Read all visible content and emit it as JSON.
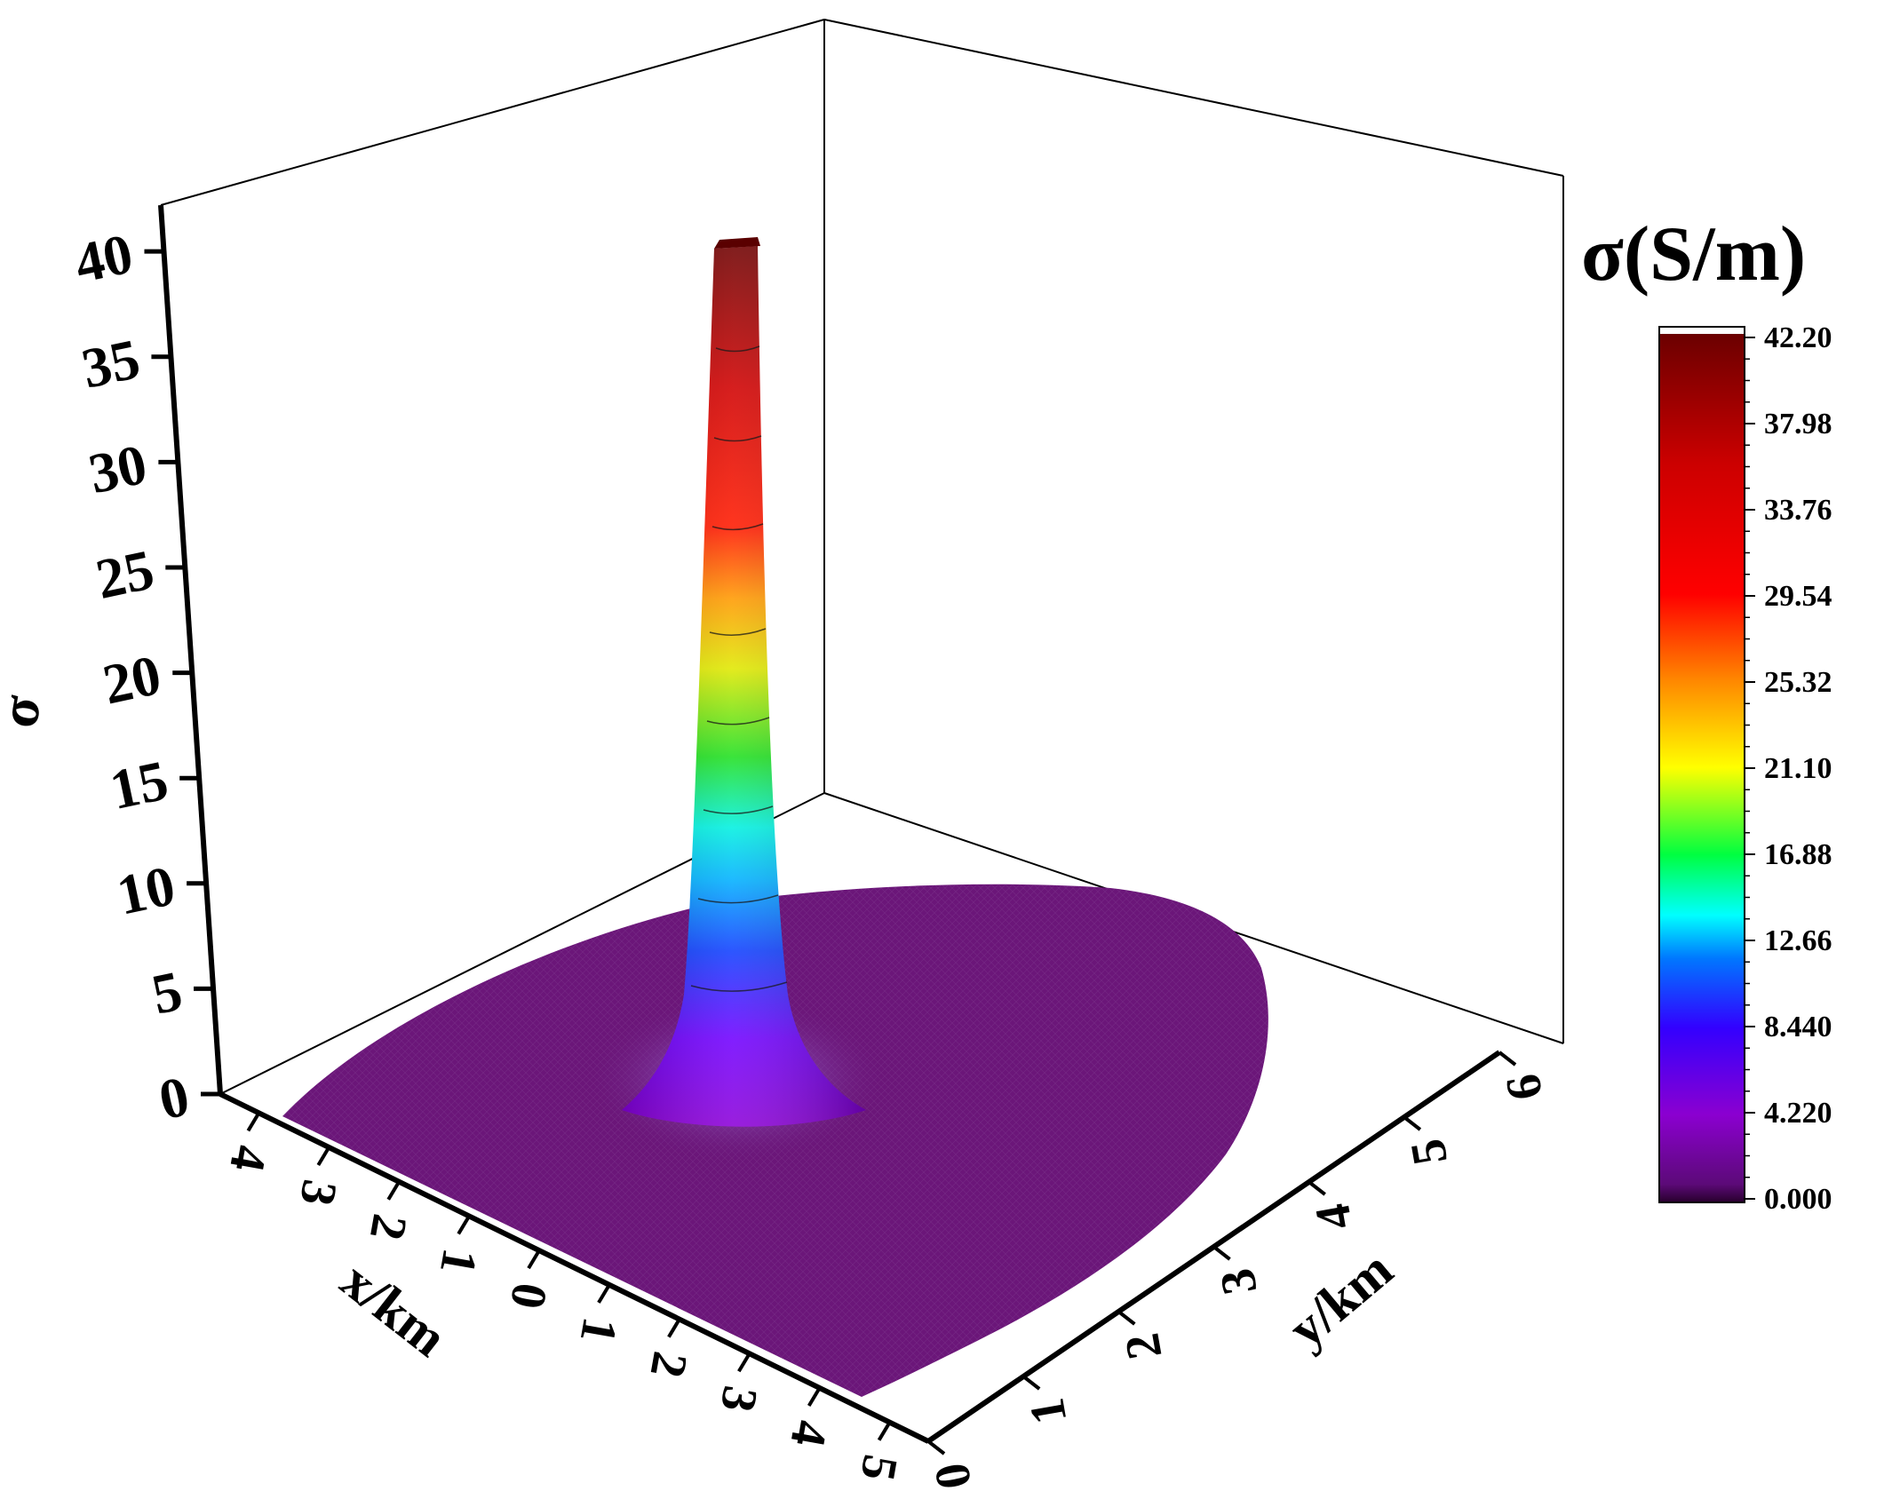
{
  "chart_data": {
    "type": "surface3d",
    "title": "",
    "colorbar": {
      "title": "σ(S/m)",
      "ticks": [
        "42.20",
        "37.98",
        "33.76",
        "29.54",
        "25.32",
        "21.10",
        "16.88",
        "12.66",
        "8.440",
        "4.220",
        "0.000"
      ],
      "min": 0,
      "max": 42.2,
      "colormap": [
        "#2a0030",
        "#8b00b8",
        "#3300ff",
        "#00aaff",
        "#00ffff",
        "#00ff33",
        "#ffff00",
        "#ff8800",
        "#ff0000",
        "#cc0000",
        "#6b0000"
      ]
    },
    "axes": {
      "x": {
        "label": "x/km",
        "ticks": [
          "4",
          "3",
          "2",
          "1",
          "0",
          "1",
          "2",
          "3",
          "4",
          "5"
        ],
        "range": [
          -4,
          5
        ]
      },
      "y": {
        "label": "y/km",
        "ticks": [
          "0",
          "1",
          "2",
          "3",
          "4",
          "5",
          "6"
        ],
        "range": [
          0,
          6
        ]
      },
      "z": {
        "label": "σ",
        "ticks": [
          "0",
          "5",
          "10",
          "15",
          "20",
          "25",
          "30",
          "35",
          "40"
        ],
        "range": [
          0,
          42.2
        ]
      }
    },
    "surface": {
      "base_value": 0.5,
      "peak_value": 42.2,
      "peak_location": {
        "x": -1,
        "y": 3.5
      },
      "base_color": "#6b1679"
    }
  }
}
